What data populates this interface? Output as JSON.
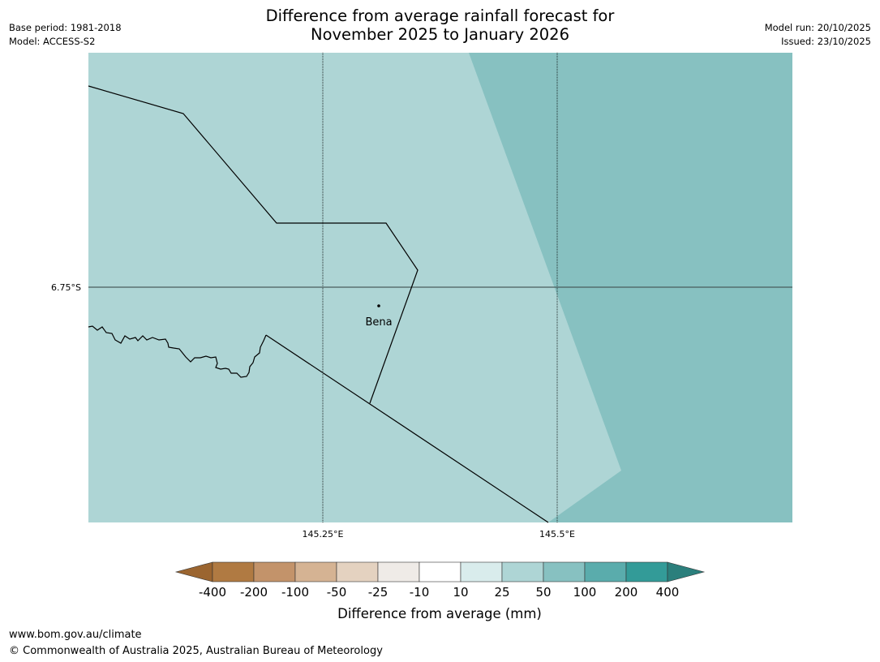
{
  "header": {
    "title_line1": "Difference from average rainfall forecast for",
    "title_line2": "November 2025 to January 2026",
    "base_period": "Base period: 1981-2018",
    "model": "Model: ACCESS-S2",
    "model_run": "Model run: 20/10/2025",
    "issued": "Issued: 23/10/2025"
  },
  "map": {
    "lat_label": "6.75°S",
    "lon_labels": [
      "145.25°E",
      "145.5°E"
    ],
    "place": "Bena",
    "zones": [
      {
        "category": "25 to 50",
        "color": "#aed5d5"
      },
      {
        "category": "50 to 100",
        "color": "#87c1c1"
      }
    ]
  },
  "colorbar": {
    "label": "Difference from average (mm)",
    "ticks": [
      "-400",
      "-200",
      "-100",
      "-50",
      "-25",
      "-10",
      "10",
      "25",
      "50",
      "100",
      "200",
      "400"
    ],
    "colors": [
      "#9b6530",
      "#b07a42",
      "#c3936a",
      "#d5b393",
      "#e4d2c0",
      "#efebe7",
      "#ffffff",
      "#d9ecec",
      "#aed5d5",
      "#87c1c1",
      "#5aacac",
      "#339b98",
      "#2b7f7c"
    ]
  },
  "footer": {
    "url": "www.bom.gov.au/climate",
    "copyright": "© Commonwealth of Australia 2025, Australian Bureau of Meteorology"
  }
}
